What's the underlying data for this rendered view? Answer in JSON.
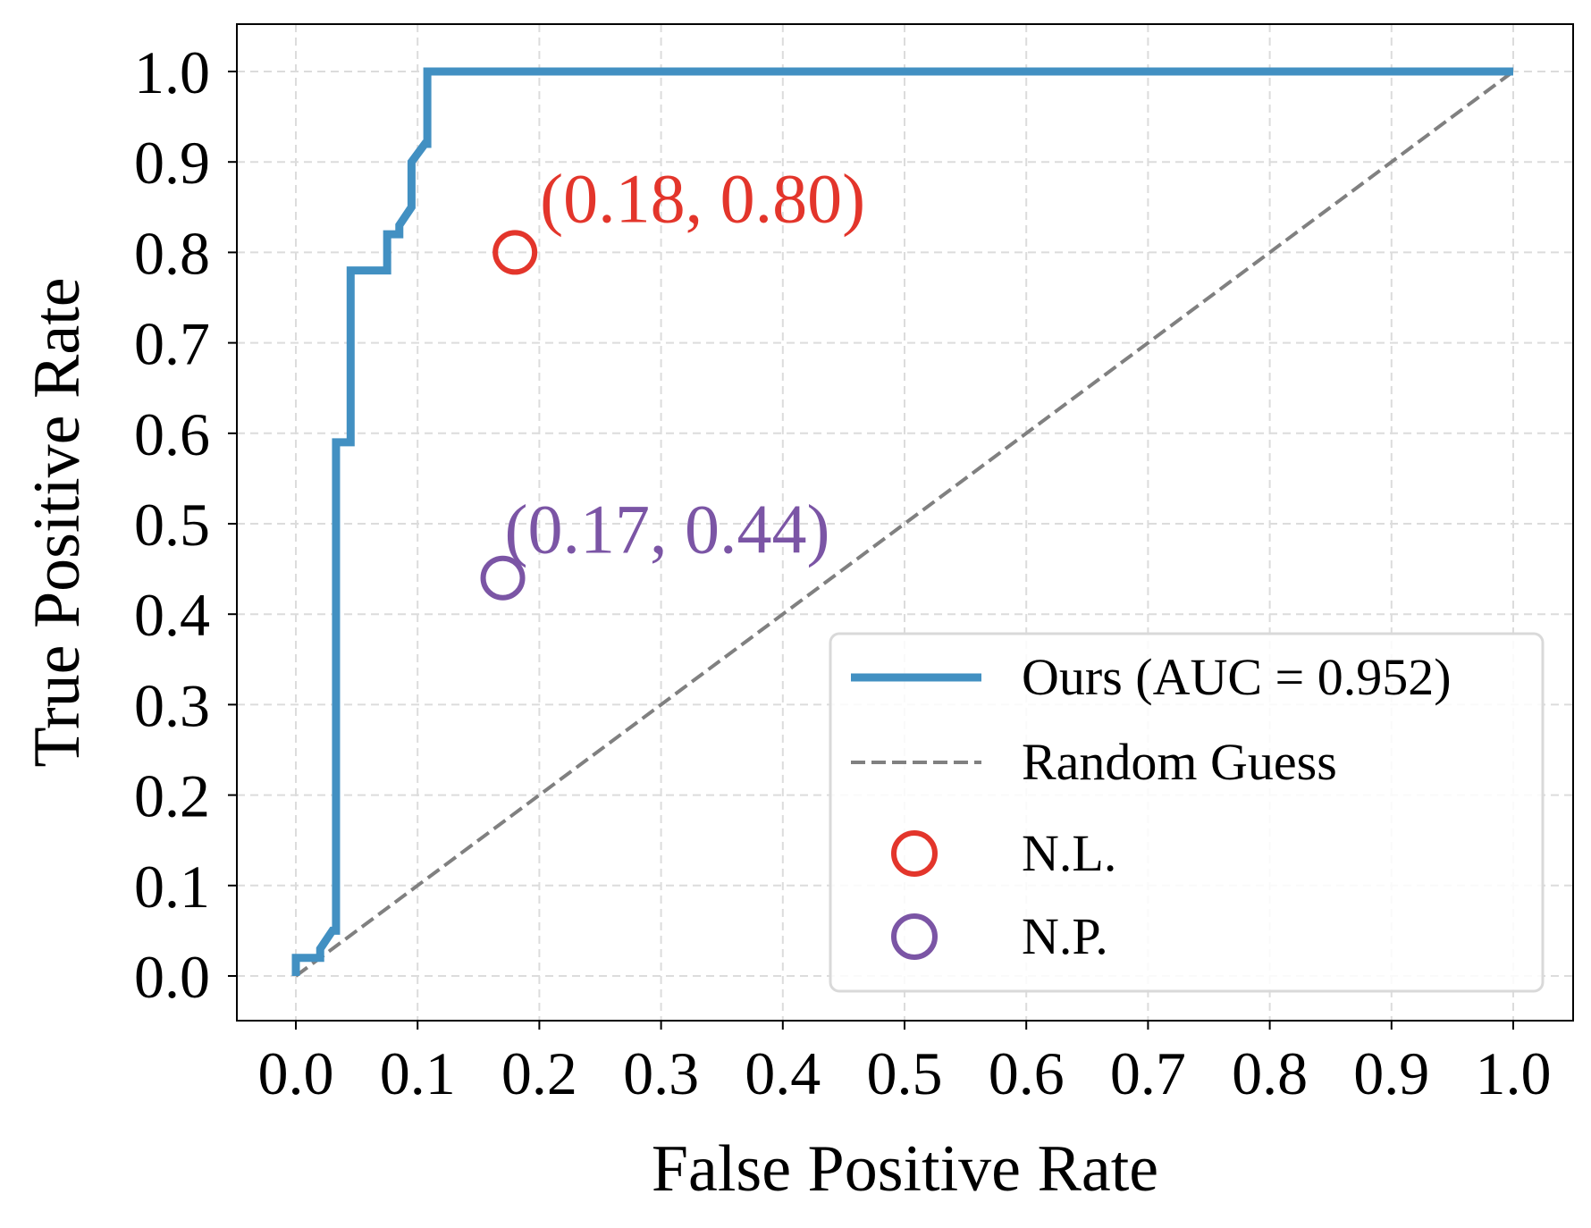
{
  "chart_data": {
    "type": "line",
    "title": "",
    "xlabel": "False Positive Rate",
    "ylabel": "True Positive Rate",
    "xlim": [
      -0.05,
      1.05
    ],
    "ylim": [
      -0.05,
      1.05
    ],
    "grid": true,
    "legend_position": "lower-right",
    "xticks": [
      0.0,
      0.1,
      0.2,
      0.3,
      0.4,
      0.5,
      0.6,
      0.7,
      0.8,
      0.9,
      1.0
    ],
    "xtick_labels": [
      "0.0",
      "0.1",
      "0.2",
      "0.3",
      "0.4",
      "0.5",
      "0.6",
      "0.7",
      "0.8",
      "0.9",
      "1.0"
    ],
    "yticks": [
      0.0,
      0.1,
      0.2,
      0.3,
      0.4,
      0.5,
      0.6,
      0.7,
      0.8,
      0.9,
      1.0
    ],
    "ytick_labels": [
      "0.0",
      "0.1",
      "0.2",
      "0.3",
      "0.4",
      "0.5",
      "0.6",
      "0.7",
      "0.8",
      "0.9",
      "1.0"
    ],
    "series": [
      {
        "name": "Ours (AUC = 0.952)",
        "style": "solid",
        "color": "#4290c2",
        "x": [
          0.0,
          0.0,
          0.02,
          0.02,
          0.03,
          0.033,
          0.033,
          0.045,
          0.045,
          0.075,
          0.075,
          0.085,
          0.085,
          0.095,
          0.095,
          0.106,
          0.106,
          0.108,
          0.108,
          1.0
        ],
        "y": [
          0.0,
          0.02,
          0.02,
          0.03,
          0.05,
          0.05,
          0.59,
          0.59,
          0.78,
          0.78,
          0.82,
          0.82,
          0.83,
          0.85,
          0.9,
          0.92,
          0.92,
          0.92,
          1.0,
          1.0
        ]
      },
      {
        "name": "Random Guess",
        "style": "dashed",
        "color": "#808080",
        "x": [
          0.0,
          1.0
        ],
        "y": [
          0.0,
          1.0
        ]
      }
    ],
    "points": [
      {
        "name": "N.L.",
        "x": 0.18,
        "y": 0.8,
        "color": "#e3352b",
        "annotation": "(0.18, 0.80)"
      },
      {
        "name": "N.P.",
        "x": 0.17,
        "y": 0.44,
        "color": "#7b55a5",
        "annotation": "(0.17, 0.44)"
      }
    ]
  }
}
